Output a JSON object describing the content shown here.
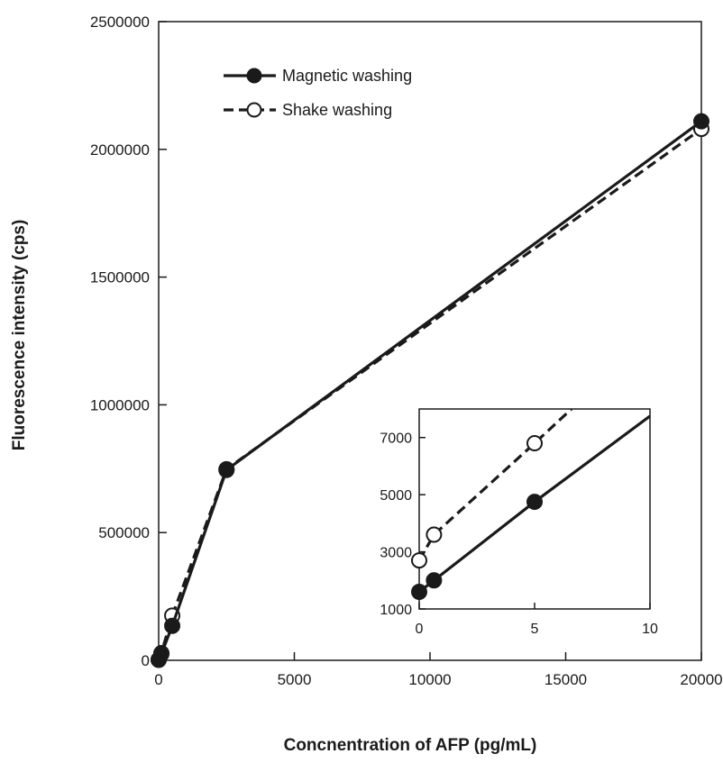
{
  "colors": {
    "line": "#1a1a1a",
    "open_marker_fill": "#ffffff",
    "background": "#ffffff"
  },
  "chart_data": [
    {
      "type": "line",
      "title": "",
      "xlabel": "Concnentration  of AFP (pg/mL)",
      "ylabel": "Fluorescence intensity (cps)",
      "xlim": [
        0,
        20000
      ],
      "ylim": [
        0,
        2500000
      ],
      "xticks": [
        0,
        5000,
        10000,
        15000,
        20000
      ],
      "yticks": [
        0,
        500000,
        1000000,
        1500000,
        2000000,
        2500000
      ],
      "grid": false,
      "legend": "top-left",
      "series": [
        {
          "name": "Magnetic washing",
          "style": "solid",
          "marker": "filled-circle",
          "x": [
            0,
            100,
            500,
            2500,
            20000
          ],
          "y": [
            1600,
            25000,
            135000,
            745000,
            2110000
          ]
        },
        {
          "name": "Shake washing",
          "style": "dashed",
          "marker": "open-circle",
          "x": [
            0,
            100,
            500,
            2500,
            20000
          ],
          "y": [
            2700,
            28000,
            175000,
            748000,
            2080000
          ]
        }
      ]
    },
    {
      "type": "line",
      "title": "",
      "xlabel": "",
      "ylabel": "",
      "xlim": [
        0,
        10
      ],
      "ylim": [
        1000,
        8000
      ],
      "xticks": [
        0,
        5,
        10
      ],
      "yticks": [
        1000,
        3000,
        5000,
        7000
      ],
      "grid": false,
      "legend": "none",
      "series": [
        {
          "style": "solid",
          "marker": "filled-circle",
          "x": [
            0,
            0.64,
            5,
            10
          ],
          "y": [
            1600,
            2000,
            4750,
            7750
          ]
        },
        {
          "style": "dashed",
          "marker": "open-circle",
          "x": [
            0,
            0.64,
            5,
            6.6
          ],
          "y": [
            2700,
            3600,
            6800,
            8000
          ]
        }
      ]
    }
  ]
}
